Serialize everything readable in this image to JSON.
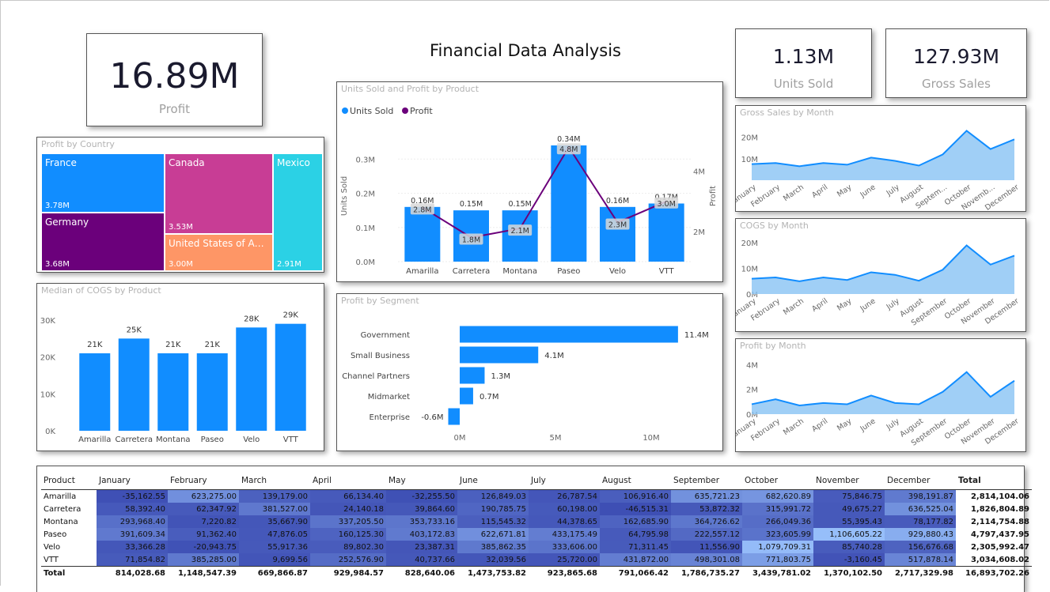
{
  "page_title": "Financial Data Analysis",
  "kpis": {
    "profit": {
      "value": "16.89M",
      "label": "Profit"
    },
    "units": {
      "value": "1.13M",
      "label": "Units Sold"
    },
    "gross": {
      "value": "127.93M",
      "label": "Gross Sales"
    }
  },
  "colors": {
    "bar": "#118DFF",
    "line": "#6B007B",
    "area": "#8FC7F5"
  },
  "treemap": {
    "title": "Profit by Country",
    "items": [
      {
        "name": "France",
        "value": "3.78M",
        "color": "#118DFF"
      },
      {
        "name": "Germany",
        "value": "3.68M",
        "color": "#6B007B"
      },
      {
        "name": "Canada",
        "value": "3.53M",
        "color": "#C83D95"
      },
      {
        "name": "United States of Amer...",
        "value": "3.00M",
        "color": "#FE9666"
      },
      {
        "name": "Mexico",
        "value": "2.91M",
        "color": "#2BD1E5"
      }
    ]
  },
  "chart_data": [
    {
      "id": "combo",
      "type": "bar",
      "title": "Units Sold and Profit by Product",
      "legend": [
        "Units Sold",
        "Profit"
      ],
      "categories": [
        "Amarilla",
        "Carretera",
        "Montana",
        "Paseo",
        "Velo",
        "VTT"
      ],
      "series": [
        {
          "name": "Units Sold",
          "values": [
            0.16,
            0.15,
            0.15,
            0.34,
            0.16,
            0.17
          ],
          "labels": [
            "0.16M",
            "0.15M",
            "0.15M",
            "0.34M",
            "0.16M",
            "0.17M"
          ]
        },
        {
          "name": "Profit",
          "values": [
            2.8,
            1.8,
            2.1,
            4.8,
            2.3,
            3.0
          ],
          "labels": [
            "2.8M",
            "1.8M",
            "2.1M",
            "4.8M",
            "2.3M",
            "3.0M"
          ]
        }
      ],
      "ylabel": "Units Sold",
      "y2label": "Profit",
      "yticks": [
        "0.0M",
        "0.1M",
        "0.2M",
        "0.3M"
      ],
      "y2ticks": [
        "2M",
        "4M"
      ],
      "ylim": [
        0,
        0.37
      ],
      "y2lim": [
        1,
        5.2
      ]
    },
    {
      "id": "cogs_median",
      "type": "bar",
      "title": "Median of COGS by Product",
      "categories": [
        "Amarilla",
        "Carretera",
        "Montana",
        "Paseo",
        "Velo",
        "VTT"
      ],
      "values": [
        21,
        25,
        21,
        21,
        28,
        29
      ],
      "labels": [
        "21K",
        "25K",
        "21K",
        "21K",
        "28K",
        "29K"
      ],
      "yticks": [
        "0K",
        "10K",
        "20K",
        "30K"
      ],
      "ylim": [
        0,
        30
      ]
    },
    {
      "id": "segment",
      "type": "bar",
      "title": "Profit by Segment",
      "categories": [
        "Government",
        "Small Business",
        "Channel Partners",
        "Midmarket",
        "Enterprise"
      ],
      "values": [
        11.4,
        4.1,
        1.3,
        0.7,
        -0.6
      ],
      "labels": [
        "11.4M",
        "4.1M",
        "1.3M",
        "0.7M",
        "-0.6M"
      ],
      "xticks": [
        "0M",
        "5M",
        "10M"
      ],
      "xlim": [
        -0.8,
        11.7
      ]
    },
    {
      "id": "gross_month",
      "type": "area",
      "title": "Gross Sales by Month",
      "categories": [
        "January",
        "February",
        "March",
        "April",
        "May",
        "June",
        "July",
        "August",
        "Septem...",
        "October",
        "Novemb...",
        "December"
      ],
      "values": [
        7.5,
        8,
        6.5,
        8,
        7.2,
        10.5,
        9,
        6.8,
        12,
        23,
        14.5,
        19
      ],
      "yticks": [
        "10M",
        "20M"
      ],
      "ylim": [
        0,
        25
      ]
    },
    {
      "id": "cogs_month",
      "type": "area",
      "title": "COGS by Month",
      "categories": [
        "January",
        "February",
        "March",
        "April",
        "May",
        "June",
        "July",
        "August",
        "September",
        "October",
        "November",
        "December"
      ],
      "values": [
        6,
        6.5,
        5,
        6.5,
        5.5,
        8.5,
        7.5,
        5.2,
        9.5,
        19,
        11.5,
        15
      ],
      "yticks": [
        "0M",
        "10M",
        "20M"
      ],
      "ylim": [
        0,
        21
      ]
    },
    {
      "id": "profit_month",
      "type": "area",
      "title": "Profit by Month",
      "categories": [
        "January",
        "February",
        "March",
        "April",
        "May",
        "June",
        "July",
        "August",
        "September",
        "October",
        "November",
        "December"
      ],
      "values": [
        0.8,
        1.2,
        0.7,
        0.9,
        0.8,
        1.5,
        0.9,
        0.8,
        1.8,
        3.4,
        1.4,
        2.7
      ],
      "yticks": [
        "0M",
        "2M",
        "4M"
      ],
      "ylim": [
        0,
        4.4
      ]
    },
    {
      "id": "matrix",
      "type": "table",
      "columns": [
        "Product",
        "January",
        "February",
        "March",
        "April",
        "May",
        "June",
        "July",
        "August",
        "September",
        "October",
        "November",
        "December",
        "Total"
      ],
      "rows": [
        [
          "Amarilla",
          "-35,162.55",
          "623,275.00",
          "139,179.00",
          "66,134.40",
          "-32,255.50",
          "126,849.03",
          "26,787.54",
          "106,916.40",
          "635,721.23",
          "682,620.89",
          "75,846.75",
          "398,191.87",
          "2,814,104.06"
        ],
        [
          "Carretera",
          "58,392.40",
          "62,347.92",
          "381,527.00",
          "24,140.18",
          "39,864.60",
          "190,785.75",
          "60,198.00",
          "-46,515.31",
          "53,872.32",
          "315,991.72",
          "49,675.27",
          "636,525.04",
          "1,826,804.89"
        ],
        [
          "Montana",
          "293,968.40",
          "7,220.82",
          "35,667.90",
          "337,205.50",
          "353,733.16",
          "115,545.32",
          "44,378.65",
          "162,685.90",
          "364,726.62",
          "266,049.36",
          "55,395.43",
          "78,177.82",
          "2,114,754.88"
        ],
        [
          "Paseo",
          "391,609.34",
          "91,362.40",
          "47,876.05",
          "160,125.30",
          "403,172.83",
          "622,671.81",
          "433,175.49",
          "64,795.98",
          "222,557.12",
          "323,605.99",
          "1,106,605.22",
          "929,880.43",
          "4,797,437.95"
        ],
        [
          "Velo",
          "33,366.28",
          "-20,943.75",
          "55,917.36",
          "89,802.30",
          "23,387.31",
          "385,862.35",
          "333,606.00",
          "71,311.45",
          "11,556.90",
          "1,079,709.31",
          "85,740.28",
          "156,676.68",
          "2,305,992.47"
        ],
        [
          "VTT",
          "71,854.82",
          "385,285.00",
          "9,699.56",
          "252,576.90",
          "40,737.66",
          "32,039.56",
          "25,720.00",
          "431,872.00",
          "498,301.08",
          "771,803.75",
          "-3,160.45",
          "517,878.14",
          "3,034,608.02"
        ]
      ],
      "total": [
        "Total",
        "814,028.68",
        "1,148,547.39",
        "669,866.87",
        "929,984.57",
        "828,640.06",
        "1,473,753.82",
        "923,865.68",
        "791,066.42",
        "1,786,735.27",
        "3,439,781.02",
        "1,370,102.50",
        "2,717,329.98",
        "16,893,702.26"
      ]
    }
  ]
}
